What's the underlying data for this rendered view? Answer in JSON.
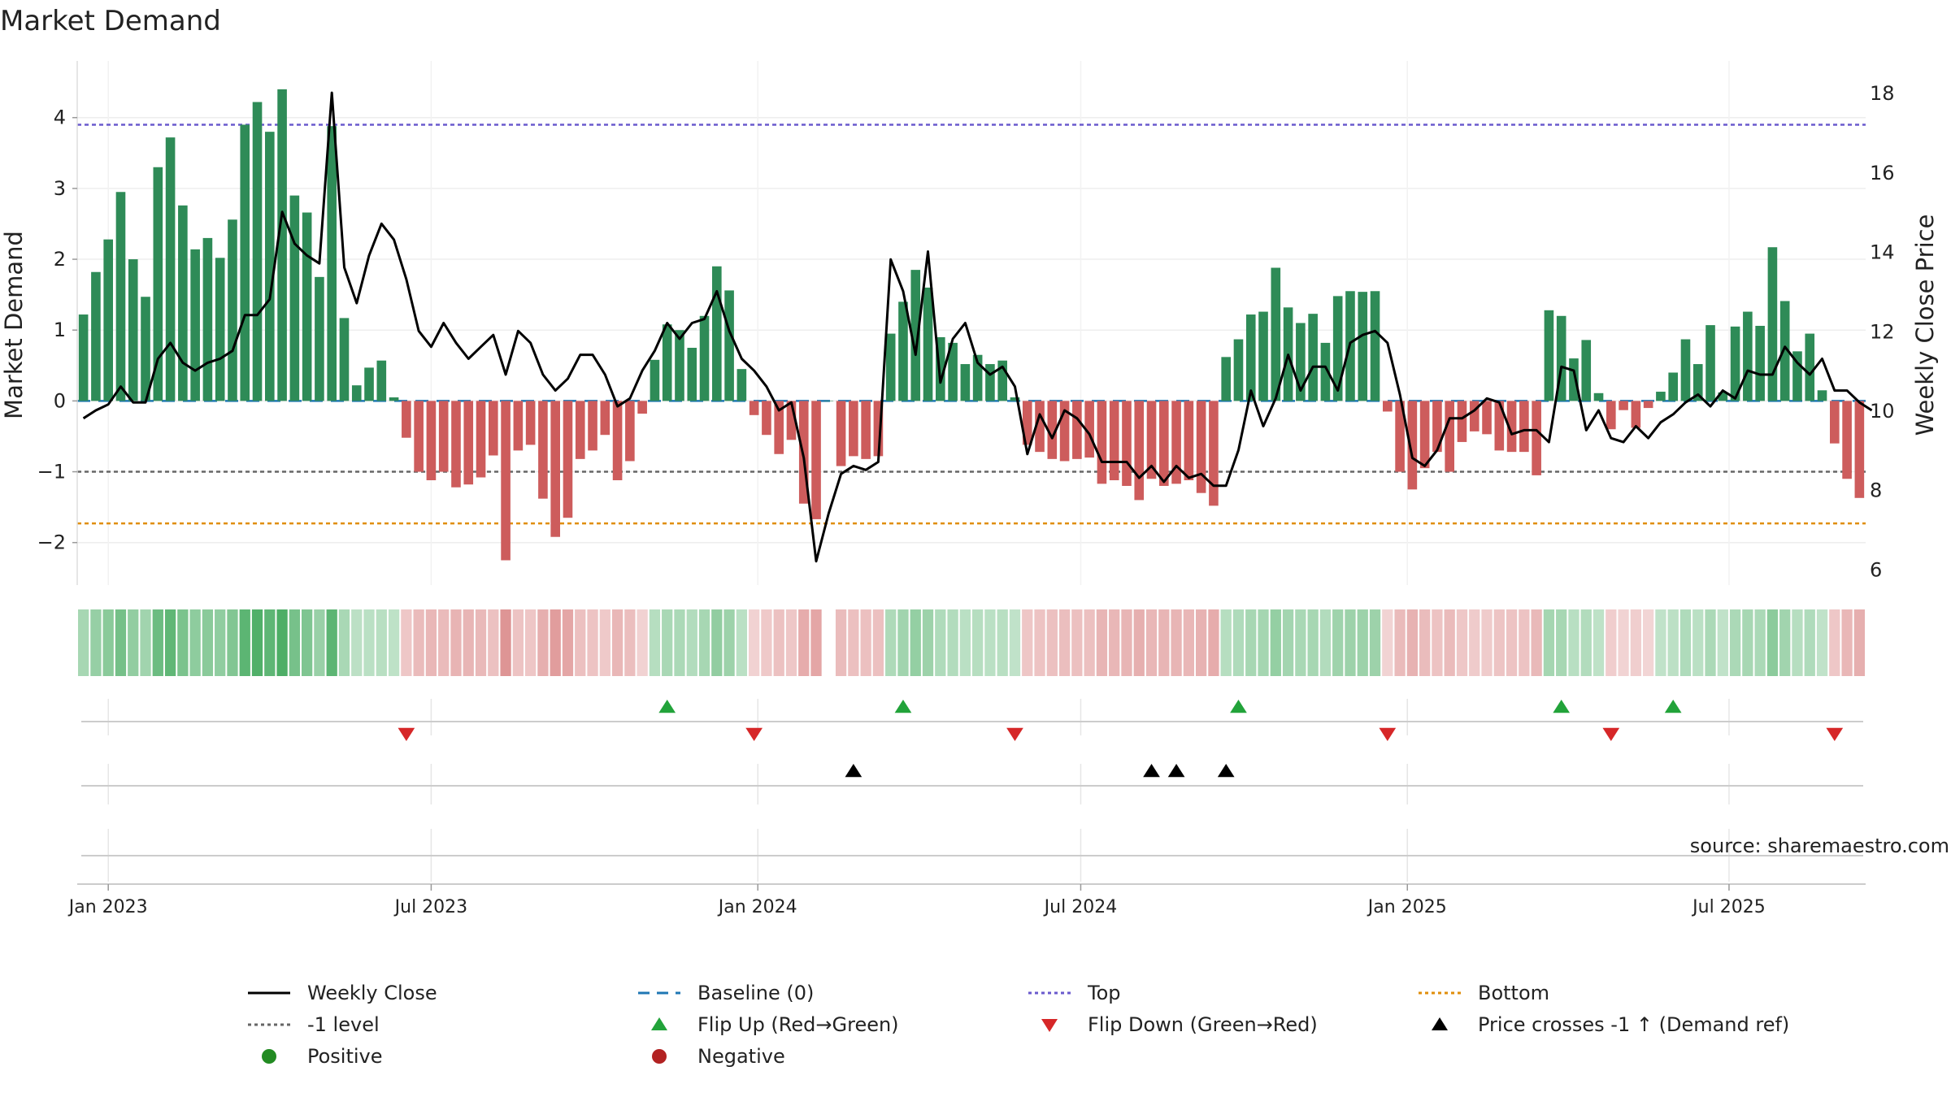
{
  "chart_data": {
    "type": "bar",
    "title": "Market Demand",
    "ylabel": "Market Demand",
    "y2label": "Weekly Close Price",
    "ylim": [
      -2.6,
      4.8
    ],
    "y2lim": [
      5.6,
      18.8
    ],
    "yticks": [
      -2,
      -1,
      0,
      1,
      2,
      3,
      4
    ],
    "ytick_labels": [
      "−2",
      "−1",
      "0",
      "1",
      "2",
      "3",
      "4"
    ],
    "y2ticks": [
      6,
      8,
      10,
      12,
      14,
      16,
      18
    ],
    "y2tick_labels": [
      "6",
      "8",
      "10",
      "12",
      "14",
      "16",
      "18"
    ],
    "x_start": 2023.0,
    "x_step_weeks": 1,
    "x_ticks": [
      {
        "label": "Jan 2023",
        "week": 2
      },
      {
        "label": "Jul 2023",
        "week": 28
      },
      {
        "label": "Jan 2024",
        "week": 54.3
      },
      {
        "label": "Jul 2024",
        "week": 80.3
      },
      {
        "label": "Jan 2025",
        "week": 106.6
      },
      {
        "label": "Jul 2025",
        "week": 132.5
      }
    ],
    "levels": {
      "top": 3.9,
      "bottom": -1.73,
      "minus_one": -1.0,
      "baseline": 0
    },
    "colors": {
      "positive_bar": "#2e8b57",
      "negative_bar": "#cd5c5c",
      "price_line": "#000000",
      "top_line": "#6a5acd",
      "bottom_line": "#e08e0b",
      "minus_one_line": "#666666",
      "baseline": "#1f77b4",
      "flip_up": "#22a33a",
      "flip_down": "#d62728",
      "cross": "#000000",
      "positive_dot": "#228b22",
      "negative_dot": "#b22222"
    },
    "series": [
      {
        "name": "Market Demand",
        "values": [
          1.22,
          1.82,
          2.28,
          2.95,
          2.0,
          1.47,
          3.3,
          3.72,
          2.76,
          2.14,
          2.3,
          2.02,
          2.56,
          3.9,
          4.22,
          3.8,
          4.4,
          2.9,
          2.66,
          1.75,
          3.88,
          1.17,
          0.22,
          0.47,
          0.57,
          0.05,
          -0.52,
          -1.0,
          -1.12,
          -1.0,
          -1.22,
          -1.18,
          -1.08,
          -0.77,
          -2.25,
          -0.7,
          -0.62,
          -1.38,
          -1.92,
          -1.65,
          -0.82,
          -0.7,
          -0.48,
          -1.12,
          -0.85,
          -0.18,
          0.58,
          1.08,
          1.0,
          0.75,
          1.2,
          1.9,
          1.56,
          0.45,
          -0.2,
          -0.48,
          -0.75,
          -0.55,
          -1.45,
          -1.67,
          0.0,
          -0.92,
          -0.78,
          -0.82,
          -0.78,
          0.95,
          1.4,
          1.85,
          1.6,
          0.9,
          0.82,
          0.52,
          0.65,
          0.52,
          0.57,
          0.05,
          -0.62,
          -0.72,
          -0.82,
          -0.85,
          -0.82,
          -0.8,
          -1.17,
          -1.12,
          -1.2,
          -1.4,
          -1.1,
          -1.2,
          -1.17,
          -1.12,
          -1.3,
          -1.48,
          0.62,
          0.87,
          1.22,
          1.26,
          1.88,
          1.32,
          1.1,
          1.23,
          0.82,
          1.48,
          1.55,
          1.54,
          1.55,
          -0.15,
          -1.0,
          -1.25,
          -0.95,
          -0.72,
          -1.0,
          -0.58,
          -0.43,
          -0.47,
          -0.7,
          -0.72,
          -0.72,
          -1.05,
          1.28,
          1.2,
          0.6,
          0.86,
          0.11,
          -0.4,
          -0.13,
          -0.38,
          -0.1,
          0.13,
          0.4,
          0.87,
          0.52,
          1.07,
          0.12,
          1.05,
          1.26,
          1.06,
          2.17,
          1.41,
          0.7,
          0.95,
          0.15,
          -0.6,
          -1.1,
          -1.37
        ]
      },
      {
        "name": "Weekly Close",
        "values": [
          9.8,
          10.0,
          10.15,
          10.6,
          10.2,
          10.2,
          11.3,
          11.7,
          11.2,
          11.0,
          11.2,
          11.3,
          11.5,
          12.4,
          12.4,
          12.8,
          15.0,
          14.2,
          13.9,
          13.7,
          18.0,
          13.6,
          12.7,
          13.9,
          14.7,
          14.3,
          13.3,
          12.0,
          11.6,
          12.2,
          11.7,
          11.3,
          11.6,
          11.9,
          10.9,
          12.0,
          11.7,
          10.9,
          10.5,
          10.8,
          11.4,
          11.4,
          10.9,
          10.1,
          10.3,
          11.0,
          11.5,
          12.2,
          11.8,
          12.2,
          12.3,
          13.0,
          12.0,
          11.3,
          11.0,
          10.6,
          10.0,
          10.2,
          8.8,
          6.2,
          7.4,
          8.4,
          8.6,
          8.5,
          8.7,
          13.8,
          13.0,
          11.4,
          14.0,
          10.7,
          11.8,
          12.2,
          11.2,
          10.9,
          11.1,
          10.6,
          8.9,
          9.9,
          9.3,
          10.0,
          9.8,
          9.4,
          8.7,
          8.7,
          8.7,
          8.3,
          8.6,
          8.2,
          8.6,
          8.3,
          8.4,
          8.1,
          8.1,
          9.0,
          10.5,
          9.6,
          10.3,
          11.4,
          10.5,
          11.1,
          11.1,
          10.5,
          11.7,
          11.9,
          12.0,
          11.7,
          10.4,
          8.8,
          8.6,
          9.0,
          9.8,
          9.8,
          10.0,
          10.3,
          10.2,
          9.4,
          9.5,
          9.5,
          9.2,
          11.1,
          11.0,
          9.5,
          10.0,
          9.3,
          9.2,
          9.6,
          9.3,
          9.7,
          9.9,
          10.2,
          10.4,
          10.1,
          10.5,
          10.3,
          11.0,
          10.9,
          10.9,
          11.6,
          11.2,
          10.9,
          11.3,
          10.5,
          10.5,
          10.2,
          10.0
        ]
      }
    ],
    "flip_up_weeks": [
      47,
      66,
      93,
      119,
      128
    ],
    "flip_down_weeks": [
      26,
      54,
      75,
      105,
      123,
      141
    ],
    "price_cross_weeks": [
      62,
      86,
      88,
      92
    ],
    "strip_intensity": [
      0.28,
      0.42,
      0.52,
      0.68,
      0.45,
      0.34,
      0.75,
      0.85,
      0.63,
      0.49,
      0.52,
      0.46,
      0.58,
      0.89,
      0.96,
      0.86,
      1.0,
      0.66,
      0.6,
      0.4,
      0.88,
      0.27,
      0.12,
      0.14,
      0.15,
      0.1,
      0.24,
      0.4,
      0.44,
      0.4,
      0.48,
      0.47,
      0.43,
      0.32,
      0.86,
      0.3,
      0.27,
      0.55,
      0.76,
      0.65,
      0.34,
      0.3,
      0.22,
      0.44,
      0.35,
      0.12,
      0.16,
      0.26,
      0.25,
      0.2,
      0.29,
      0.45,
      0.37,
      0.13,
      0.12,
      0.22,
      0.32,
      0.24,
      0.57,
      0.66,
      0.0,
      0.38,
      0.33,
      0.34,
      0.33,
      0.23,
      0.33,
      0.43,
      0.37,
      0.22,
      0.2,
      0.14,
      0.16,
      0.14,
      0.15,
      0.08,
      0.26,
      0.3,
      0.34,
      0.35,
      0.34,
      0.33,
      0.46,
      0.44,
      0.47,
      0.55,
      0.44,
      0.47,
      0.46,
      0.44,
      0.51,
      0.58,
      0.16,
      0.21,
      0.29,
      0.3,
      0.44,
      0.31,
      0.26,
      0.29,
      0.2,
      0.35,
      0.36,
      0.36,
      0.36,
      0.1,
      0.4,
      0.5,
      0.38,
      0.3,
      0.4,
      0.24,
      0.19,
      0.2,
      0.29,
      0.3,
      0.3,
      0.42,
      0.3,
      0.28,
      0.15,
      0.2,
      0.1,
      0.18,
      0.1,
      0.17,
      0.08,
      0.08,
      0.12,
      0.21,
      0.14,
      0.25,
      0.08,
      0.25,
      0.29,
      0.25,
      0.5,
      0.33,
      0.17,
      0.22,
      0.08,
      0.25,
      0.44,
      0.54
    ],
    "source": "source: sharemaestro.com",
    "legend": [
      {
        "label": "Weekly Close",
        "kind": "line",
        "color": "#000000"
      },
      {
        "label": "Baseline (0)",
        "kind": "dash",
        "color": "#1f77b4"
      },
      {
        "label": "Top",
        "kind": "dot",
        "color": "#6a5acd"
      },
      {
        "label": "Bottom",
        "kind": "dot",
        "color": "#e08e0b"
      },
      {
        "label": "-1 level",
        "kind": "dot",
        "color": "#666666"
      },
      {
        "label": "Flip Up (Red→Green)",
        "kind": "tri-up",
        "color": "#22a33a"
      },
      {
        "label": "Flip Down (Green→Red)",
        "kind": "tri-down",
        "color": "#d62728"
      },
      {
        "label": "Price crosses -1 ↑ (Demand ref)",
        "kind": "tri-up",
        "color": "#000000"
      },
      {
        "label": "Positive",
        "kind": "circle",
        "color": "#228b22"
      },
      {
        "label": "Negative",
        "kind": "circle",
        "color": "#b22222"
      }
    ]
  }
}
